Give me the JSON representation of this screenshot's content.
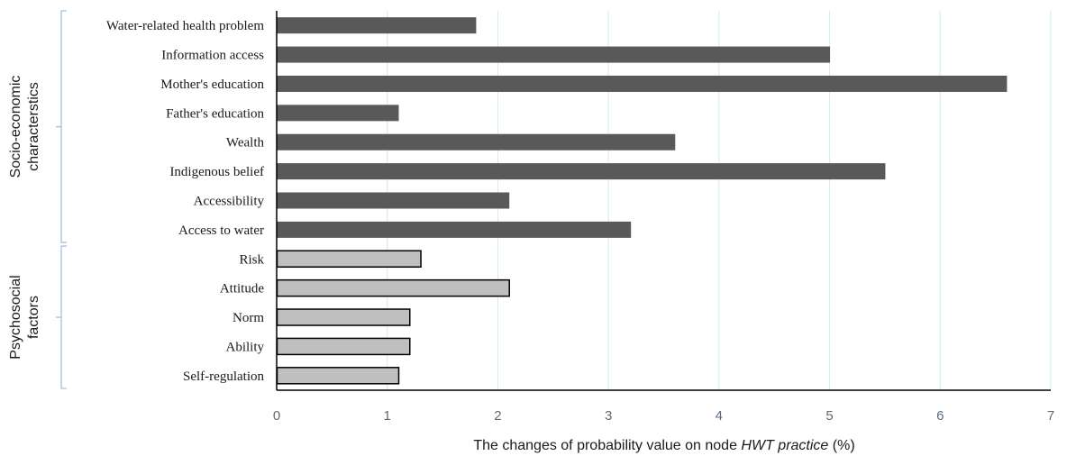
{
  "chart_data": {
    "type": "bar",
    "orientation": "horizontal",
    "categories": [
      "Water-related health problem",
      "Information access",
      "Mother's education",
      "Father's education",
      "Wealth",
      "Indigenous belief",
      "Accessibility",
      "Access to water",
      "Risk",
      "Attitude",
      "Norm",
      "Ability",
      "Self-regulation"
    ],
    "values": [
      1.8,
      5.0,
      6.6,
      1.1,
      3.6,
      5.5,
      2.1,
      3.2,
      1.3,
      2.1,
      1.2,
      1.2,
      1.1
    ],
    "groups": [
      {
        "label_lines": [
          "Socio-economic",
          "characterstics"
        ],
        "categories": [
          "Water-related health problem",
          "Information access",
          "Mother's education",
          "Father's education",
          "Wealth",
          "Indigenous belief",
          "Accessibility",
          "Access to water"
        ],
        "bar_color": "#595959",
        "bar_outline": "none"
      },
      {
        "label_lines": [
          "Psychosocial",
          "factors"
        ],
        "categories": [
          "Risk",
          "Attitude",
          "Norm",
          "Ability",
          "Self-regulation"
        ],
        "bar_color": "#bfbfbf",
        "bar_outline": "#000000"
      }
    ],
    "xlabel": {
      "prefix": "The changes of probability value on node ",
      "italic": "HWT practice",
      "suffix": " (%)"
    },
    "xlim": [
      0,
      7
    ],
    "xticks": [
      "0",
      "1",
      "2",
      "3",
      "4",
      "5",
      "6",
      "7"
    ],
    "grid": "vertical",
    "grid_color": "#cfeaf3",
    "bracket_color": "#9dc3e6",
    "legend": "none"
  }
}
